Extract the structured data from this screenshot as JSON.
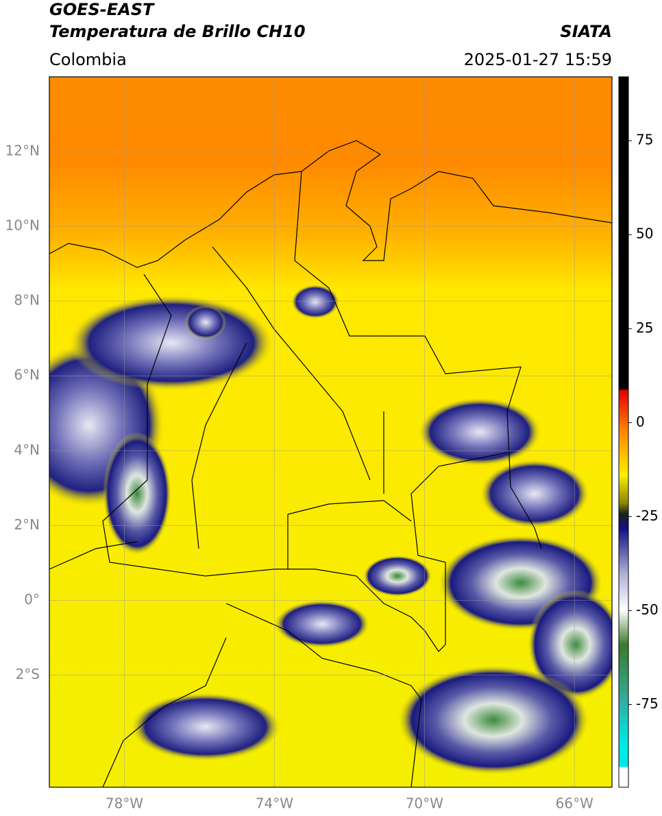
{
  "header": {
    "title": "GOES-EAST",
    "subtitle": "Temperatura de Brillo CH10",
    "source": "SIATA",
    "region": "Colombia",
    "datetime": "2025-01-27 15:59"
  },
  "map": {
    "xlim": [
      -80,
      -65
    ],
    "ylim": [
      -5,
      14
    ],
    "grid": true,
    "xticks": [
      {
        "value": -78,
        "label": "78°W"
      },
      {
        "value": -74,
        "label": "74°W"
      },
      {
        "value": -70,
        "label": "70°W"
      },
      {
        "value": -66,
        "label": "66°W"
      }
    ],
    "yticks": [
      {
        "value": 12,
        "label": "12°N"
      },
      {
        "value": 10,
        "label": "10°N"
      },
      {
        "value": 8,
        "label": "8°N"
      },
      {
        "value": 6,
        "label": "6°N"
      },
      {
        "value": 4,
        "label": "4°N"
      },
      {
        "value": 2,
        "label": "2°N"
      },
      {
        "value": 0,
        "label": "0°"
      },
      {
        "value": -2,
        "label": "2°S"
      }
    ]
  },
  "colorbar": {
    "clim": [
      -97,
      92
    ],
    "ticks": [
      75,
      50,
      25,
      0,
      -25,
      -50,
      -75
    ]
  }
}
